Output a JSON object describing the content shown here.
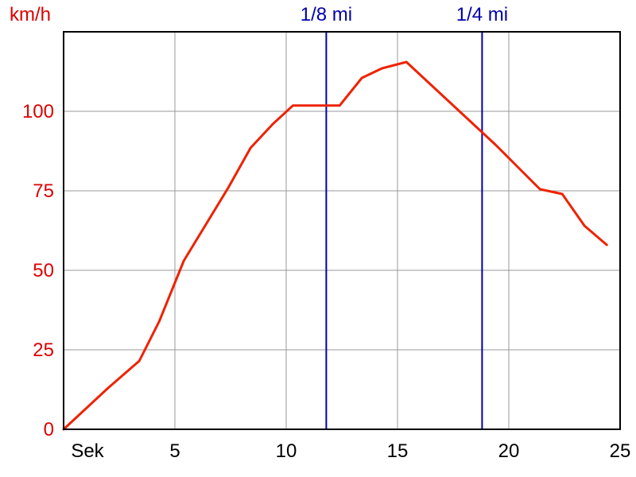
{
  "chart_data": {
    "type": "line",
    "ylabel": "km/h",
    "xlabel": "Sek",
    "xlim": [
      0,
      25
    ],
    "ylim": [
      0,
      125
    ],
    "x_ticks": [
      5,
      10,
      15,
      20,
      25
    ],
    "y_ticks": [
      0,
      25,
      50,
      75,
      100
    ],
    "grid": true,
    "series": [
      {
        "x": [
          0,
          1,
          2,
          3.4,
          4.3,
          5.4,
          6.4,
          7.4,
          8.4,
          9.4,
          10.3,
          11.3,
          12.4,
          13.4,
          14.3,
          15.4,
          16.4,
          17.4,
          18.4,
          19.4,
          20.4,
          21.4,
          22.4,
          23.4,
          24.4
        ],
        "y": [
          0,
          6.5,
          13,
          21.5,
          34,
          53,
          64.5,
          76,
          88.5,
          96,
          101.8,
          101.8,
          101.8,
          110.5,
          113.5,
          115.5,
          109,
          102.5,
          96,
          89.5,
          82.5,
          75.5,
          74,
          64,
          58
        ]
      }
    ],
    "markers": [
      {
        "label": "1/8 mi",
        "x": 11.8
      },
      {
        "label": "1/4 mi",
        "x": 18.8
      }
    ]
  },
  "colors": {
    "series": "#ee2200",
    "marker": "#0000aa",
    "y_axis_text": "#dd0000",
    "grid": "#999999",
    "frame": "#000000"
  }
}
